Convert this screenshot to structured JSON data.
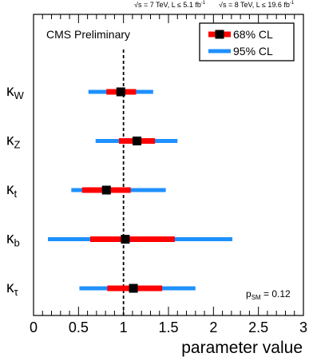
{
  "header": {
    "run1": "√s = 7 TeV, L ≤ 5.1 fb",
    "run1_exp": "-1",
    "run2": "√s = 8 TeV, L ≤ 19.6 fb",
    "run2_exp": "-1"
  },
  "colors": {
    "cl68": "#ff0000",
    "cl95": "#1e90ff",
    "marker": "#000000",
    "sm_line": "#000000"
  },
  "chart_data": {
    "type": "scatter",
    "title": "CMS Preliminary",
    "xlabel": "parameter value",
    "xlim": [
      0,
      3
    ],
    "x_ticks": [
      "0",
      "0.5",
      "1",
      "1.5",
      "2",
      "2.5",
      "3"
    ],
    "sm_line_x": 1,
    "legend": {
      "position": "top-right",
      "entries": [
        "68% CL",
        "95% CL"
      ]
    },
    "annotation": {
      "text": "p",
      "sub": "SM",
      "suffix": " = 0.12"
    },
    "parameters": [
      {
        "label": "κ",
        "sub": "W",
        "best": 0.97,
        "cl68": [
          0.81,
          1.14
        ],
        "cl95": [
          0.61,
          1.33
        ]
      },
      {
        "label": "κ",
        "sub": "Z",
        "best": 1.15,
        "cl68": [
          0.95,
          1.35
        ],
        "cl95": [
          0.69,
          1.6
        ]
      },
      {
        "label": "κ",
        "sub": "t",
        "best": 0.81,
        "cl68": [
          0.54,
          1.08
        ],
        "cl95": [
          0.42,
          1.47
        ]
      },
      {
        "label": "κ",
        "sub": "b",
        "best": 1.02,
        "cl68": [
          0.63,
          1.57
        ],
        "cl95": [
          0.16,
          2.21
        ]
      },
      {
        "label": "κ",
        "sub": "τ",
        "best": 1.11,
        "cl68": [
          0.82,
          1.43
        ],
        "cl95": [
          0.51,
          1.8
        ]
      }
    ]
  }
}
